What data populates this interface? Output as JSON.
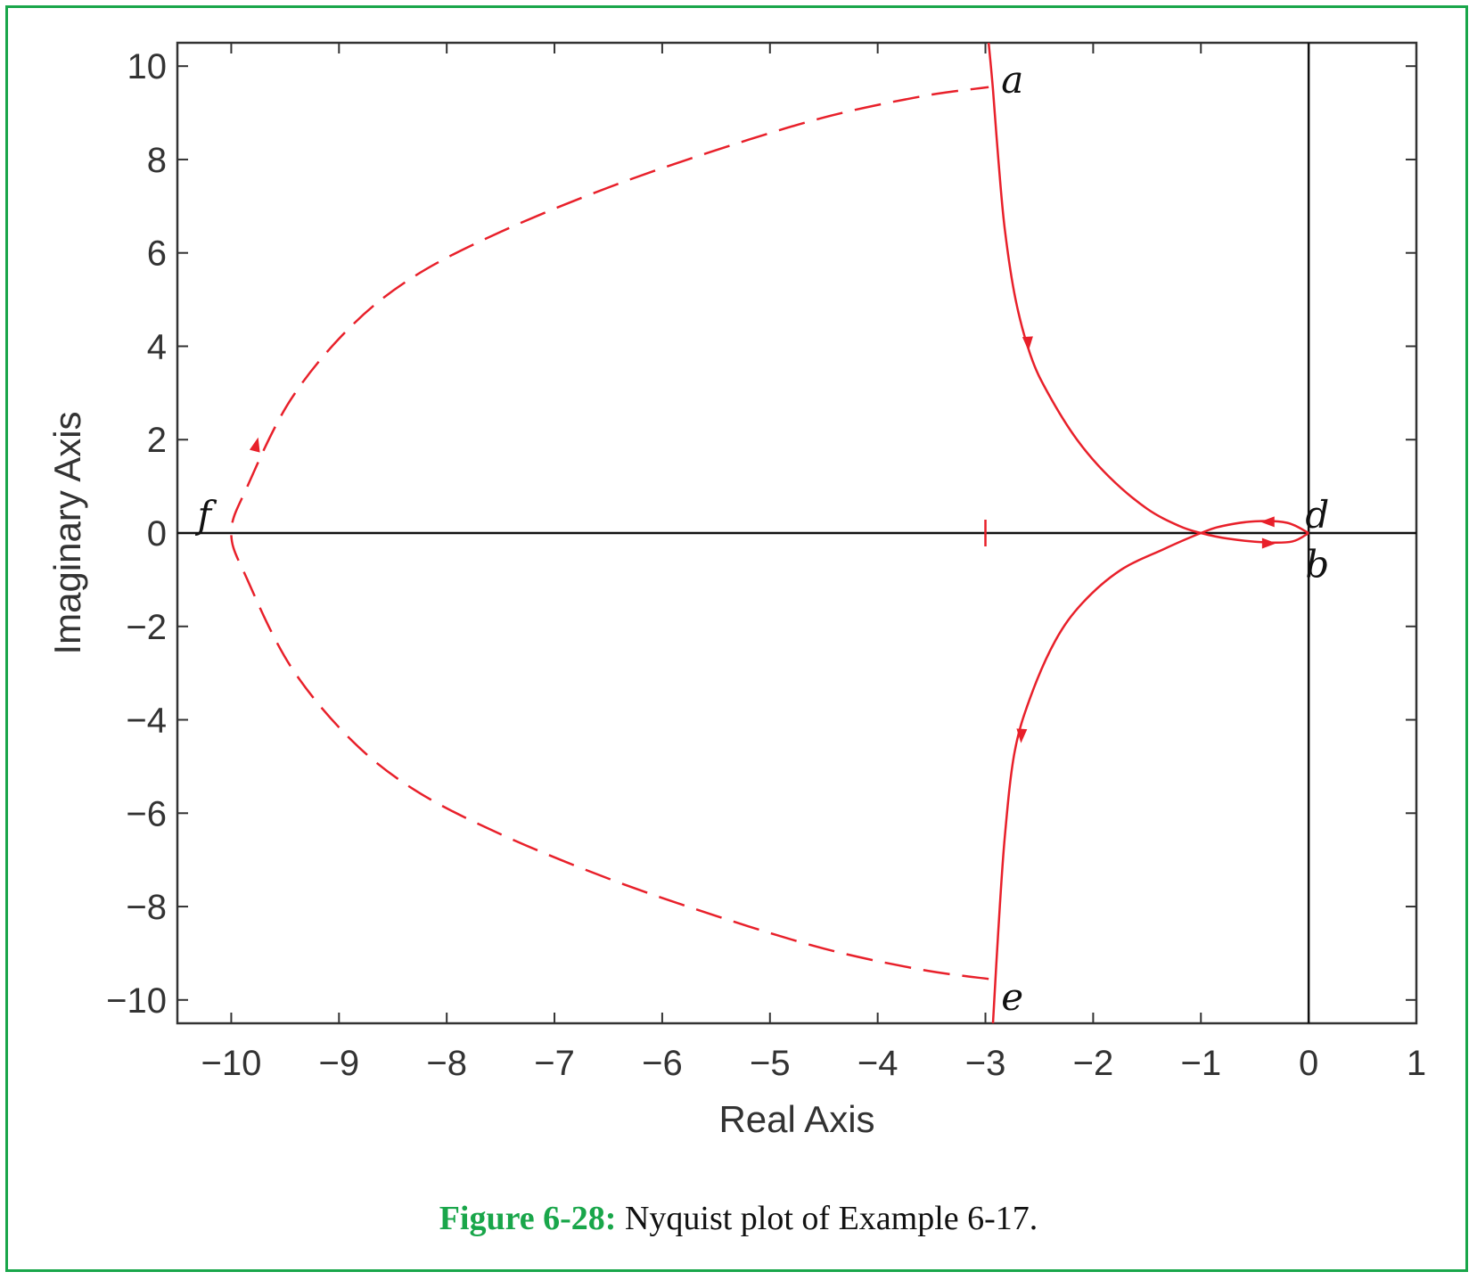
{
  "figure": {
    "label": "Figure 6-28:",
    "text": "Nyquist plot of Example 6-17."
  },
  "colors": {
    "frame": "#19a64a",
    "curve": "#e8202a",
    "axes": "#333333"
  },
  "chart_data": {
    "type": "line",
    "xlabel": "Real Axis",
    "ylabel": "Imaginary Axis",
    "xlim": [
      -10.5,
      1
    ],
    "ylim": [
      -10.5,
      10.5
    ],
    "xticks": [
      -10,
      -9,
      -8,
      -7,
      -6,
      -5,
      -4,
      -3,
      -2,
      -1,
      0,
      1
    ],
    "yticks": [
      -10,
      -8,
      -6,
      -4,
      -2,
      0,
      2,
      4,
      6,
      8,
      10
    ],
    "xtick_labels": [
      "−10",
      "−9",
      "−8",
      "−7",
      "−6",
      "−5",
      "−4",
      "−3",
      "−2",
      "−1",
      "0",
      "1"
    ],
    "ytick_labels": [
      "−10",
      "−8",
      "−6",
      "−4",
      "−2",
      "0",
      "2",
      "4",
      "6",
      "8",
      "10"
    ],
    "grid": false,
    "reference_lines": [
      {
        "axis": "x",
        "value": 0
      },
      {
        "axis": "y",
        "value": 0
      }
    ],
    "series": [
      {
        "style": "solid",
        "points": [
          [
            -2.97,
            10.5
          ],
          [
            -2.93,
            9.5
          ],
          [
            -2.88,
            8.0
          ],
          [
            -2.82,
            6.5
          ],
          [
            -2.72,
            5.0
          ],
          [
            -2.58,
            3.8
          ],
          [
            -2.42,
            3.0
          ],
          [
            -2.15,
            2.0
          ],
          [
            -1.85,
            1.2
          ],
          [
            -1.5,
            0.52
          ],
          [
            -1.2,
            0.15
          ],
          [
            -1.0,
            0.0
          ],
          [
            -0.75,
            -0.12
          ],
          [
            -0.4,
            -0.2
          ],
          [
            -0.15,
            -0.18
          ],
          [
            0.0,
            0.0
          ]
        ]
      },
      {
        "style": "solid",
        "points": [
          [
            0.0,
            0.0
          ],
          [
            -0.2,
            0.22
          ],
          [
            -0.5,
            0.25
          ],
          [
            -0.8,
            0.15
          ],
          [
            -1.0,
            0.0
          ],
          [
            -1.35,
            -0.35
          ],
          [
            -1.75,
            -0.8
          ],
          [
            -2.1,
            -1.5
          ],
          [
            -2.35,
            -2.3
          ],
          [
            -2.58,
            -3.5
          ],
          [
            -2.73,
            -4.7
          ],
          [
            -2.82,
            -6.5
          ],
          [
            -2.88,
            -8.5
          ],
          [
            -2.93,
            -10.5
          ]
        ]
      },
      {
        "style": "dashed",
        "points": [
          [
            -2.97,
            -9.55
          ],
          [
            -3.6,
            -9.35
          ],
          [
            -4.5,
            -8.9
          ],
          [
            -5.5,
            -8.2
          ],
          [
            -6.5,
            -7.4
          ],
          [
            -7.5,
            -6.45
          ],
          [
            -8.3,
            -5.5
          ],
          [
            -8.9,
            -4.4
          ],
          [
            -9.45,
            -2.85
          ],
          [
            -9.85,
            -1.0
          ],
          [
            -10.0,
            0.0
          ],
          [
            -9.85,
            1.0
          ],
          [
            -9.45,
            2.85
          ],
          [
            -8.9,
            4.4
          ],
          [
            -8.3,
            5.5
          ],
          [
            -7.5,
            6.45
          ],
          [
            -6.5,
            7.4
          ],
          [
            -5.5,
            8.2
          ],
          [
            -4.5,
            8.9
          ],
          [
            -3.6,
            9.35
          ],
          [
            -2.97,
            9.55
          ]
        ]
      }
    ],
    "arrows": [
      {
        "at": [
          -2.6,
          3.9
        ],
        "dir": [
          0.06,
          -1
        ]
      },
      {
        "at": [
          -0.3,
          -0.22
        ],
        "dir": [
          1,
          0
        ]
      },
      {
        "at": [
          -0.45,
          0.24
        ],
        "dir": [
          -1,
          0
        ]
      },
      {
        "at": [
          -2.67,
          -4.5
        ],
        "dir": [
          -0.06,
          -1
        ]
      },
      {
        "at": [
          -9.75,
          2.05
        ],
        "dir": [
          0.25,
          1
        ]
      }
    ],
    "marker": {
      "at": [
        -3.0,
        0
      ],
      "type": "vertical-tick"
    },
    "annotations": [
      {
        "text": "a",
        "at": [
          -2.75,
          9.7
        ]
      },
      {
        "text": "d",
        "at": [
          0.08,
          0.38
        ]
      },
      {
        "text": "b",
        "at": [
          0.08,
          -0.68
        ]
      },
      {
        "text": "e",
        "at": [
          -2.75,
          -9.95
        ]
      },
      {
        "text": "f",
        "at": [
          -10.25,
          0.38
        ]
      }
    ]
  }
}
